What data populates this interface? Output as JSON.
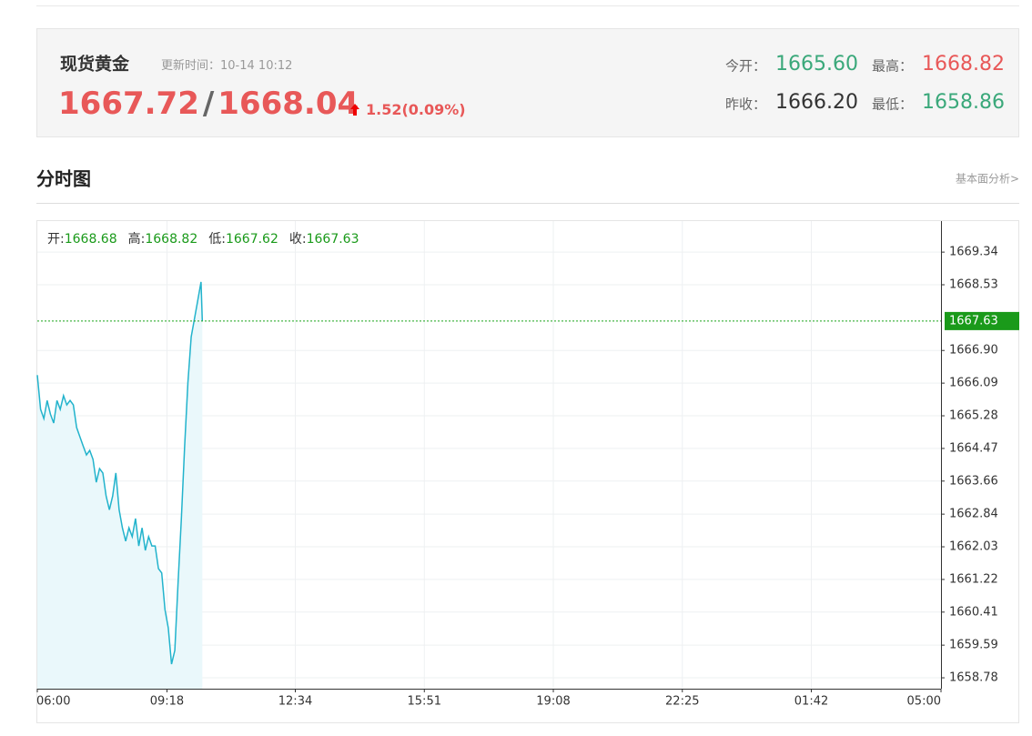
{
  "header": {
    "title": "现货黄金",
    "update_label": "更新时间：",
    "update_time": "10-14 10:12",
    "bid": "1667.72",
    "separator": "/",
    "ask": "1668.04",
    "change": "1.52",
    "change_pct": "(0.09%)",
    "stats": [
      {
        "label": "今开：",
        "value": "1665.60"
      },
      {
        "label": "最高：",
        "value": "1668.82"
      },
      {
        "label": "昨收：",
        "value": "1666.20"
      },
      {
        "label": "最低：",
        "value": "1658.86"
      }
    ]
  },
  "section": {
    "title": "分时图",
    "link": "基本面分析>"
  },
  "chart_data": {
    "type": "line",
    "ohlc": [
      {
        "label": "开:",
        "value": 1668.68
      },
      {
        "label": "高:",
        "value": 1668.82
      },
      {
        "label": "低:",
        "value": 1667.62
      },
      {
        "label": "收:",
        "value": 1667.63
      }
    ],
    "last": 1667.63,
    "color": "#22b3cc",
    "fill": "#eaf8fb",
    "grid": true,
    "x": [
      "06:00",
      "06:05",
      "06:10",
      "06:15",
      "06:20",
      "06:25",
      "06:30",
      "06:35",
      "06:40",
      "06:45",
      "06:50",
      "06:55",
      "07:00",
      "07:05",
      "07:10",
      "07:15",
      "07:20",
      "07:25",
      "07:30",
      "07:35",
      "07:40",
      "07:45",
      "07:50",
      "07:55",
      "08:00",
      "08:05",
      "08:10",
      "08:15",
      "08:20",
      "08:25",
      "08:30",
      "08:35",
      "08:40",
      "08:45",
      "08:50",
      "08:55",
      "09:00",
      "09:05",
      "09:10",
      "09:15",
      "09:20",
      "09:25",
      "09:30",
      "09:35",
      "09:40",
      "09:45",
      "09:50",
      "09:55",
      "10:00",
      "10:05",
      "10:10",
      "10:12"
    ],
    "values": [
      1666.29,
      1665.44,
      1665.21,
      1665.66,
      1665.32,
      1665.1,
      1665.66,
      1665.44,
      1665.78,
      1665.55,
      1665.66,
      1665.55,
      1664.99,
      1664.76,
      1664.53,
      1664.31,
      1664.42,
      1664.2,
      1663.63,
      1663.97,
      1663.86,
      1663.29,
      1662.95,
      1663.29,
      1663.86,
      1662.95,
      1662.5,
      1662.17,
      1662.5,
      1662.28,
      1662.73,
      1662.05,
      1662.5,
      1661.94,
      1662.28,
      1662.05,
      1662.05,
      1661.49,
      1661.38,
      1660.47,
      1660.02,
      1659.12,
      1659.46,
      1661.15,
      1662.73,
      1664.53,
      1666.11,
      1667.24,
      1667.69,
      1668.14,
      1668.6,
      1667.63
    ],
    "xlim": [
      "06:00",
      "05:00"
    ],
    "xticks": [
      "06:00",
      "09:18",
      "12:34",
      "15:51",
      "19:08",
      "22:25",
      "01:42",
      "05:00"
    ],
    "ylim": [
      1658.51,
      1670.11
    ],
    "yticks": [
      1669.34,
      1668.53,
      {
        "value": 1666.9,
        "label": "1666.90"
      },
      1666.09,
      1665.28,
      1664.47,
      1663.66,
      1662.84,
      1662.03,
      1661.22,
      1660.41,
      1659.59,
      1658.78
    ]
  }
}
